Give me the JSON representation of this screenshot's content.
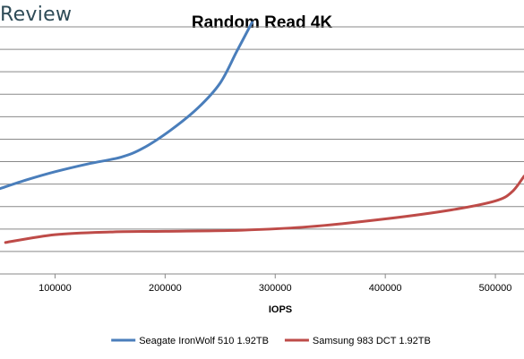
{
  "brand": {
    "text": "Review"
  },
  "chart_data": {
    "type": "line",
    "title": "Random Read 4K",
    "xlabel": "IOPS",
    "ylabel": "",
    "xlim": [
      50000,
      526000
    ],
    "ylim": [
      0,
      11
    ],
    "x_ticks": [
      100000,
      200000,
      300000,
      400000,
      500000
    ],
    "x_tick_labels": [
      "100000",
      "200000",
      "300000",
      "400000",
      "500000"
    ],
    "y_gridlines": [
      1,
      2,
      3,
      4,
      5,
      6,
      7,
      8,
      9,
      10,
      11
    ],
    "grid": true,
    "legend_position": "bottom",
    "series": [
      {
        "name": "Seagate IronWolf 510 1.92TB",
        "color": "#4a7ebb",
        "points": [
          [
            50000,
            3.8
          ],
          [
            75000,
            4.2
          ],
          [
            100000,
            4.55
          ],
          [
            130000,
            4.9
          ],
          [
            160000,
            5.2
          ],
          [
            180000,
            5.6
          ],
          [
            205000,
            6.4
          ],
          [
            230000,
            7.4
          ],
          [
            250000,
            8.5
          ],
          [
            265000,
            9.9
          ],
          [
            279000,
            11.2
          ]
        ]
      },
      {
        "name": "Samsung 983 DCT 1.92TB",
        "color": "#be4b48",
        "points": [
          [
            55000,
            1.4
          ],
          [
            100000,
            1.75
          ],
          [
            150000,
            1.87
          ],
          [
            200000,
            1.9
          ],
          [
            270000,
            1.95
          ],
          [
            330000,
            2.1
          ],
          [
            400000,
            2.45
          ],
          [
            460000,
            2.85
          ],
          [
            500000,
            3.25
          ],
          [
            515000,
            3.65
          ],
          [
            526000,
            4.35
          ]
        ]
      }
    ]
  }
}
